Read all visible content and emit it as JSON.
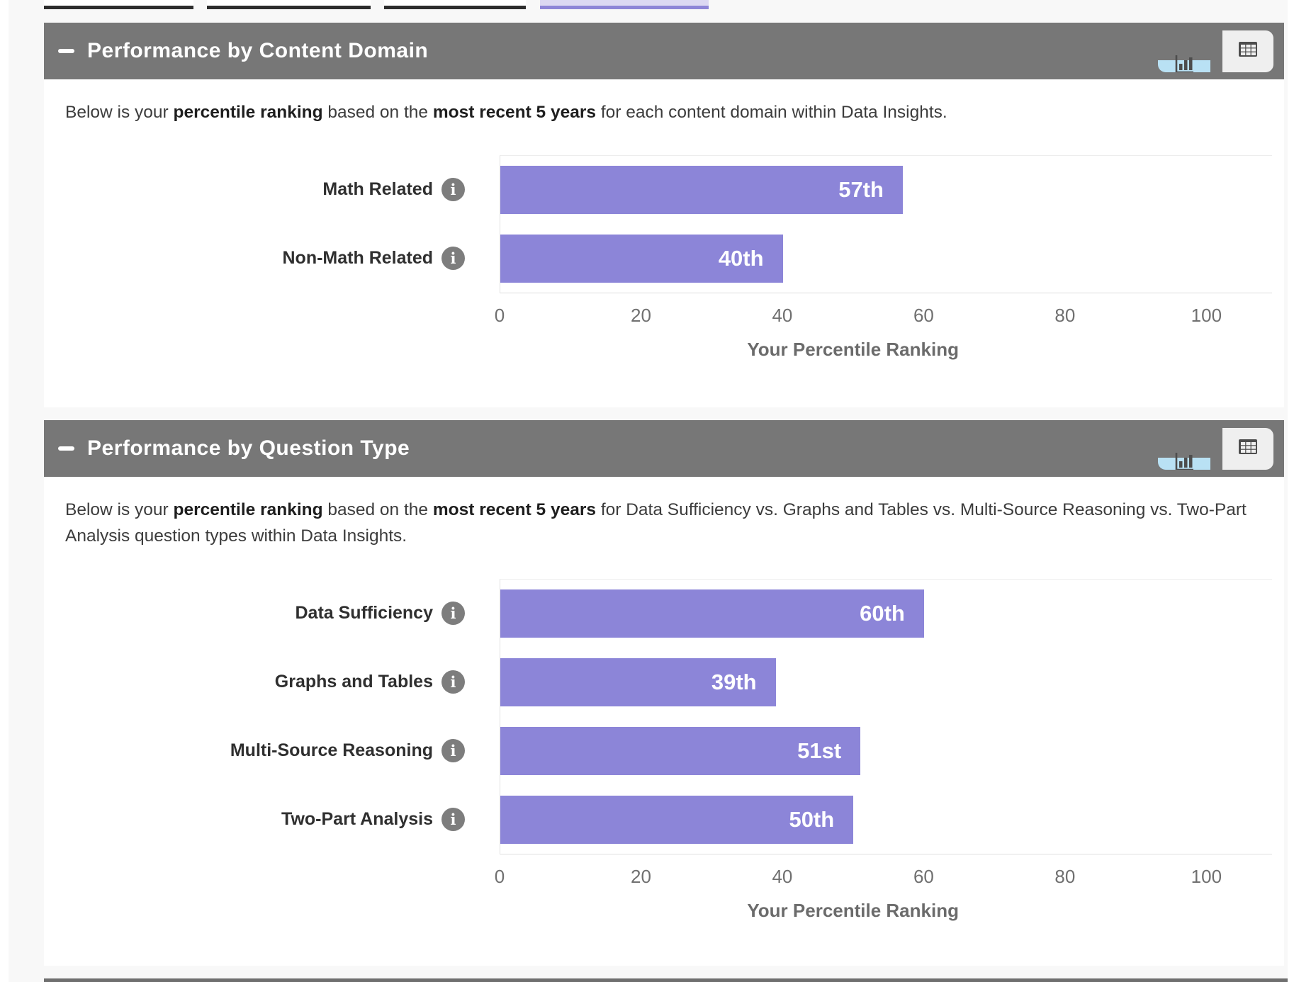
{
  "top_tabs": {
    "items": [
      {
        "state": "inactive"
      },
      {
        "state": "inactive"
      },
      {
        "state": "inactive"
      },
      {
        "state": "active"
      }
    ]
  },
  "colors": {
    "bar_purple": "#8c85d8",
    "header_gray": "#777777",
    "active_toggle_blue": "#b9e1f4",
    "inactive_toggle_gray": "#efefef",
    "active_tab_lavender": "#dcd8f2",
    "active_tab_underline": "#8e85d7",
    "inactive_tab_underline": "#2d2d2d",
    "page_background": "#f8f8f8",
    "panel_background": "#ffffff"
  },
  "info_icon_glyph": "i",
  "collapse_glyph": "minus",
  "panels": [
    {
      "title": "Performance by Content Domain",
      "toolbar": {
        "views": [
          "chart",
          "table"
        ],
        "active_view": "chart"
      },
      "description": [
        {
          "text": "Below is your ",
          "bold": false
        },
        {
          "text": "percentile ranking",
          "bold": true
        },
        {
          "text": " based on the ",
          "bold": false
        },
        {
          "text": "most recent 5 years",
          "bold": true
        },
        {
          "text": " for each content domain within Data Insights.",
          "bold": false
        }
      ],
      "chart_data": {
        "type": "bar",
        "orientation": "horizontal",
        "categories": [
          "Math Related",
          "Non-Math Related"
        ],
        "values": [
          57,
          40
        ],
        "value_labels": [
          "57th",
          "40th"
        ],
        "xlabel": "Your Percentile Ranking",
        "xlim": [
          0,
          100
        ],
        "xticks": [
          0,
          20,
          40,
          60,
          80,
          100
        ],
        "bar_color": "#8c85d8",
        "grid": false,
        "legend": false
      }
    },
    {
      "title": "Performance by Question Type",
      "toolbar": {
        "views": [
          "chart",
          "table"
        ],
        "active_view": "chart"
      },
      "description": [
        {
          "text": "Below is your ",
          "bold": false
        },
        {
          "text": "percentile ranking",
          "bold": true
        },
        {
          "text": " based on the ",
          "bold": false
        },
        {
          "text": "most recent 5 years",
          "bold": true
        },
        {
          "text": " for Data Sufficiency vs. Graphs and Tables vs. Multi-Source Reasoning vs. Two-Part Analysis question types within Data Insights.",
          "bold": false
        }
      ],
      "chart_data": {
        "type": "bar",
        "orientation": "horizontal",
        "categories": [
          "Data Sufficiency",
          "Graphs and Tables",
          "Multi-Source Reasoning",
          "Two-Part Analysis"
        ],
        "values": [
          60,
          39,
          51,
          50
        ],
        "value_labels": [
          "60th",
          "39th",
          "51st",
          "50th"
        ],
        "xlabel": "Your Percentile Ranking",
        "xlim": [
          0,
          100
        ],
        "xticks": [
          0,
          20,
          40,
          60,
          80,
          100
        ],
        "bar_color": "#8c85d8",
        "grid": false,
        "legend": false
      }
    }
  ]
}
